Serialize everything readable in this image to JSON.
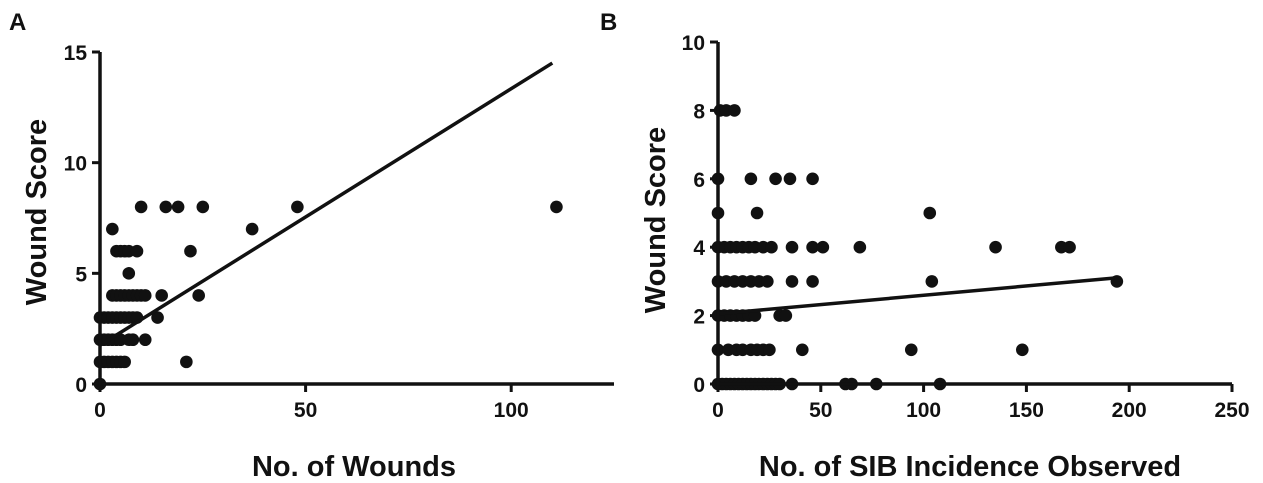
{
  "chart_data": [
    {
      "panel": "A",
      "type": "scatter",
      "xlabel": "No. of Wounds",
      "ylabel": "Wound Score",
      "xlim": [
        0,
        125
      ],
      "ylim": [
        0,
        15
      ],
      "xticks": [
        0,
        50,
        100
      ],
      "yticks": [
        0,
        5,
        10,
        15
      ],
      "points": [
        [
          0,
          0
        ],
        [
          0,
          1
        ],
        [
          1,
          1
        ],
        [
          2,
          1
        ],
        [
          3,
          1
        ],
        [
          4,
          1
        ],
        [
          5,
          1
        ],
        [
          6,
          1
        ],
        [
          0,
          2
        ],
        [
          1,
          2
        ],
        [
          2,
          2
        ],
        [
          3,
          2
        ],
        [
          4,
          2
        ],
        [
          5,
          2
        ],
        [
          7,
          2
        ],
        [
          8,
          2
        ],
        [
          11,
          2
        ],
        [
          0,
          3
        ],
        [
          1,
          3
        ],
        [
          2,
          3
        ],
        [
          3,
          3
        ],
        [
          4,
          3
        ],
        [
          5,
          3
        ],
        [
          6,
          3
        ],
        [
          7,
          3
        ],
        [
          8,
          3
        ],
        [
          9,
          3
        ],
        [
          14,
          3
        ],
        [
          3,
          4
        ],
        [
          4,
          4
        ],
        [
          5,
          4
        ],
        [
          6,
          4
        ],
        [
          7,
          4
        ],
        [
          8,
          4
        ],
        [
          9,
          4
        ],
        [
          10,
          4
        ],
        [
          11,
          4
        ],
        [
          15,
          4
        ],
        [
          24,
          4
        ],
        [
          7,
          5
        ],
        [
          4,
          6
        ],
        [
          5,
          6
        ],
        [
          6,
          6
        ],
        [
          7,
          6
        ],
        [
          9,
          6
        ],
        [
          22,
          6
        ],
        [
          3,
          7
        ],
        [
          37,
          7
        ],
        [
          10,
          8
        ],
        [
          16,
          8
        ],
        [
          19,
          8
        ],
        [
          25,
          8
        ],
        [
          48,
          8
        ],
        [
          111,
          8
        ],
        [
          21,
          1
        ]
      ],
      "fit_line": [
        [
          0,
          1.75
        ],
        [
          110,
          14.5
        ]
      ]
    },
    {
      "panel": "B",
      "type": "scatter",
      "xlabel": "No. of SIB Incidence Observed",
      "ylabel": "Wound Score",
      "xlim": [
        0,
        250
      ],
      "ylim": [
        0,
        10
      ],
      "xticks": [
        0,
        50,
        100,
        150,
        200,
        250
      ],
      "yticks": [
        0,
        2,
        4,
        6,
        8,
        10
      ],
      "points": [
        [
          0,
          0
        ],
        [
          2,
          0
        ],
        [
          4,
          0
        ],
        [
          6,
          0
        ],
        [
          8,
          0
        ],
        [
          10,
          0
        ],
        [
          12,
          0
        ],
        [
          14,
          0
        ],
        [
          16,
          0
        ],
        [
          18,
          0
        ],
        [
          20,
          0
        ],
        [
          22,
          0
        ],
        [
          24,
          0
        ],
        [
          26,
          0
        ],
        [
          28,
          0
        ],
        [
          30,
          0
        ],
        [
          36,
          0
        ],
        [
          62,
          0
        ],
        [
          65,
          0
        ],
        [
          77,
          0
        ],
        [
          108,
          0
        ],
        [
          0,
          1
        ],
        [
          5,
          1
        ],
        [
          9,
          1
        ],
        [
          12,
          1
        ],
        [
          16,
          1
        ],
        [
          19,
          1
        ],
        [
          22,
          1
        ],
        [
          25,
          1
        ],
        [
          41,
          1
        ],
        [
          94,
          1
        ],
        [
          148,
          1
        ],
        [
          0,
          2
        ],
        [
          3,
          2
        ],
        [
          6,
          2
        ],
        [
          9,
          2
        ],
        [
          12,
          2
        ],
        [
          15,
          2
        ],
        [
          18,
          2
        ],
        [
          30,
          2
        ],
        [
          33,
          2
        ],
        [
          0,
          3
        ],
        [
          4,
          3
        ],
        [
          8,
          3
        ],
        [
          12,
          3
        ],
        [
          16,
          3
        ],
        [
          20,
          3
        ],
        [
          24,
          3
        ],
        [
          36,
          3
        ],
        [
          46,
          3
        ],
        [
          104,
          3
        ],
        [
          194,
          3
        ],
        [
          0,
          4
        ],
        [
          3,
          4
        ],
        [
          6,
          4
        ],
        [
          9,
          4
        ],
        [
          12,
          4
        ],
        [
          15,
          4
        ],
        [
          18,
          4
        ],
        [
          22,
          4
        ],
        [
          26,
          4
        ],
        [
          36,
          4
        ],
        [
          46,
          4
        ],
        [
          51,
          4
        ],
        [
          69,
          4
        ],
        [
          135,
          4
        ],
        [
          167,
          4
        ],
        [
          171,
          4
        ],
        [
          0,
          5
        ],
        [
          19,
          5
        ],
        [
          103,
          5
        ],
        [
          0,
          6
        ],
        [
          16,
          6
        ],
        [
          28,
          6
        ],
        [
          35,
          6
        ],
        [
          46,
          6
        ],
        [
          1,
          8
        ],
        [
          4,
          8
        ],
        [
          8,
          8
        ]
      ],
      "fit_line": [
        [
          0,
          2.05
        ],
        [
          193,
          3.1
        ]
      ]
    }
  ]
}
